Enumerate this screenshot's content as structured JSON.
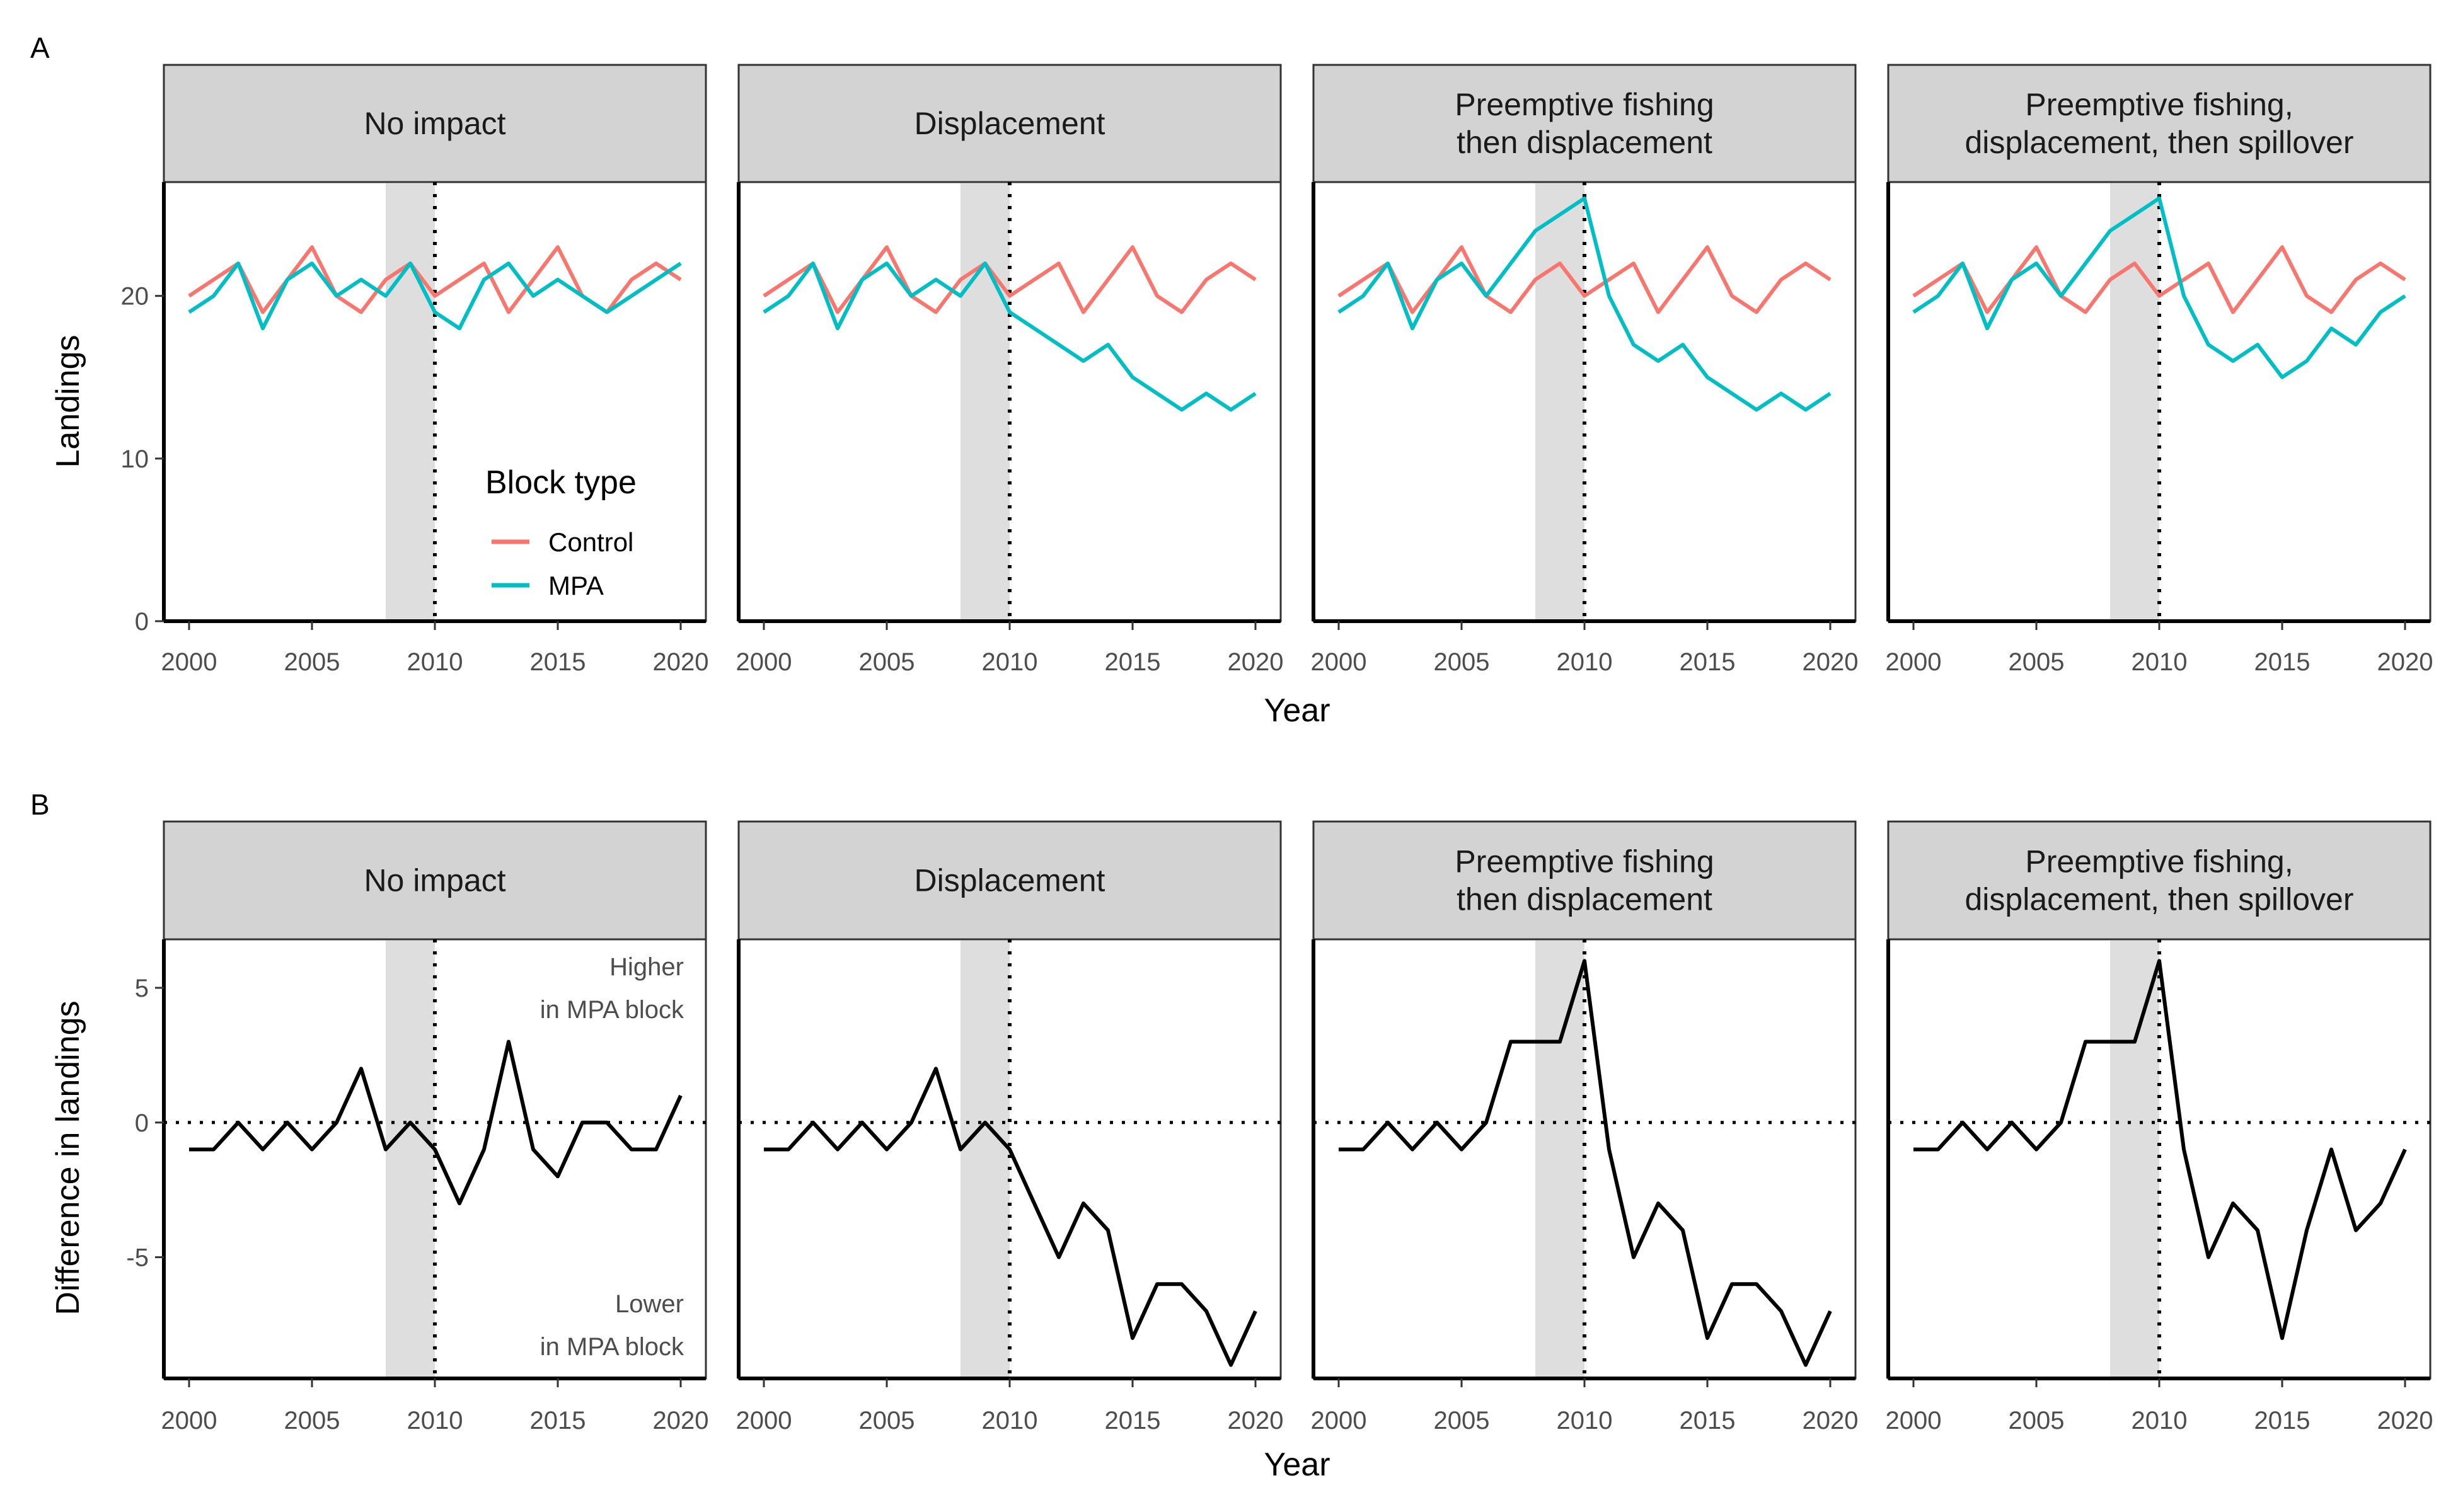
{
  "chart_data": [
    {
      "type": "line",
      "panel_label": "A",
      "xlabel": "Year",
      "ylabel": "Landings",
      "xlim": [
        2000,
        2020
      ],
      "ylim": [
        0,
        27
      ],
      "xticks": [
        2000,
        2005,
        2010,
        2015,
        2020
      ],
      "yticks": [
        0,
        10,
        20
      ],
      "grid": false,
      "shaded_region": [
        2008,
        2010
      ],
      "vline": 2010,
      "legend": {
        "title": "Block type",
        "placement": "inside bottom-right of first facet",
        "entries": [
          {
            "label": "Control",
            "color": "#F8766D"
          },
          {
            "label": "MPA",
            "color": "#00BFC4"
          }
        ]
      },
      "x": [
        2000,
        2001,
        2002,
        2003,
        2004,
        2005,
        2006,
        2007,
        2008,
        2009,
        2010,
        2011,
        2012,
        2013,
        2014,
        2015,
        2016,
        2017,
        2018,
        2019,
        2020
      ],
      "facets": [
        {
          "title": "No impact",
          "series": [
            {
              "name": "Control",
              "color": "#F8766D",
              "values": [
                20,
                21,
                22,
                19,
                21,
                23,
                20,
                19,
                21,
                22,
                20,
                21,
                22,
                19,
                21,
                23,
                20,
                19,
                21,
                22,
                21
              ]
            },
            {
              "name": "MPA",
              "color": "#00BFC4",
              "values": [
                19,
                20,
                22,
                18,
                21,
                22,
                20,
                21,
                20,
                22,
                19,
                18,
                21,
                22,
                20,
                21,
                20,
                19,
                20,
                21,
                22
              ]
            }
          ]
        },
        {
          "title": "Displacement",
          "series": [
            {
              "name": "Control",
              "color": "#F8766D",
              "values": [
                20,
                21,
                22,
                19,
                21,
                23,
                20,
                19,
                21,
                22,
                20,
                21,
                22,
                19,
                21,
                23,
                20,
                19,
                21,
                22,
                21
              ]
            },
            {
              "name": "MPA",
              "color": "#00BFC4",
              "values": [
                19,
                20,
                22,
                18,
                21,
                22,
                20,
                21,
                20,
                22,
                19,
                18,
                17,
                16,
                17,
                15,
                14,
                13,
                14,
                13,
                14
              ]
            }
          ]
        },
        {
          "title": "Preemptive fishing\nthen displacement",
          "series": [
            {
              "name": "Control",
              "color": "#F8766D",
              "values": [
                20,
                21,
                22,
                19,
                21,
                23,
                20,
                19,
                21,
                22,
                20,
                21,
                22,
                19,
                21,
                23,
                20,
                19,
                21,
                22,
                21
              ]
            },
            {
              "name": "MPA",
              "color": "#00BFC4",
              "values": [
                19,
                20,
                22,
                18,
                21,
                22,
                20,
                22,
                24,
                25,
                26,
                20,
                17,
                16,
                17,
                15,
                14,
                13,
                14,
                13,
                14
              ]
            }
          ]
        },
        {
          "title": "Preemptive fishing,\ndisplacement, then spillover",
          "series": [
            {
              "name": "Control",
              "color": "#F8766D",
              "values": [
                20,
                21,
                22,
                19,
                21,
                23,
                20,
                19,
                21,
                22,
                20,
                21,
                22,
                19,
                21,
                23,
                20,
                19,
                21,
                22,
                21
              ]
            },
            {
              "name": "MPA",
              "color": "#00BFC4",
              "values": [
                19,
                20,
                22,
                18,
                21,
                22,
                20,
                22,
                24,
                25,
                26,
                20,
                17,
                16,
                17,
                15,
                16,
                18,
                17,
                19,
                20
              ]
            }
          ]
        }
      ]
    },
    {
      "type": "line",
      "panel_label": "B",
      "xlabel": "Year",
      "ylabel": "Difference in landings",
      "xlim": [
        2000,
        2020
      ],
      "ylim": [
        -9.5,
        6.8
      ],
      "xticks": [
        2000,
        2005,
        2010,
        2015,
        2020
      ],
      "yticks": [
        -5,
        0,
        5
      ],
      "grid": false,
      "shaded_region": [
        2008,
        2010
      ],
      "vline": 2010,
      "hline": 0,
      "annotations": {
        "higher": "Higher\nin MPA block",
        "lower": "Lower\nin MPA block"
      },
      "x": [
        2000,
        2001,
        2002,
        2003,
        2004,
        2005,
        2006,
        2007,
        2008,
        2009,
        2010,
        2011,
        2012,
        2013,
        2014,
        2015,
        2016,
        2017,
        2018,
        2019,
        2020
      ],
      "facets": [
        {
          "title": "No impact",
          "series": [
            {
              "color": "#000000",
              "values": [
                -1,
                -1,
                0,
                -1,
                0,
                -1,
                0,
                2,
                -1,
                0,
                -1,
                -3,
                -1,
                3,
                -1,
                -2,
                0,
                0,
                -1,
                -1,
                1
              ]
            }
          ]
        },
        {
          "title": "Displacement",
          "series": [
            {
              "color": "#000000",
              "values": [
                -1,
                -1,
                0,
                -1,
                0,
                -1,
                0,
                2,
                -1,
                0,
                -1,
                -3,
                -5,
                -3,
                -4,
                -8,
                -6,
                -6,
                -7,
                -9,
                -7
              ]
            }
          ]
        },
        {
          "title": "Preemptive fishing\nthen displacement",
          "series": [
            {
              "color": "#000000",
              "values": [
                -1,
                -1,
                0,
                -1,
                0,
                -1,
                0,
                3,
                3,
                3,
                6,
                -1,
                -5,
                -3,
                -4,
                -8,
                -6,
                -6,
                -7,
                -9,
                -7
              ]
            }
          ]
        },
        {
          "title": "Preemptive fishing,\ndisplacement, then spillover",
          "series": [
            {
              "color": "#000000",
              "values": [
                -1,
                -1,
                0,
                -1,
                0,
                -1,
                0,
                3,
                3,
                3,
                6,
                -1,
                -5,
                -3,
                -4,
                -8,
                -4,
                -1,
                -4,
                -3,
                -1
              ]
            }
          ]
        }
      ]
    }
  ]
}
